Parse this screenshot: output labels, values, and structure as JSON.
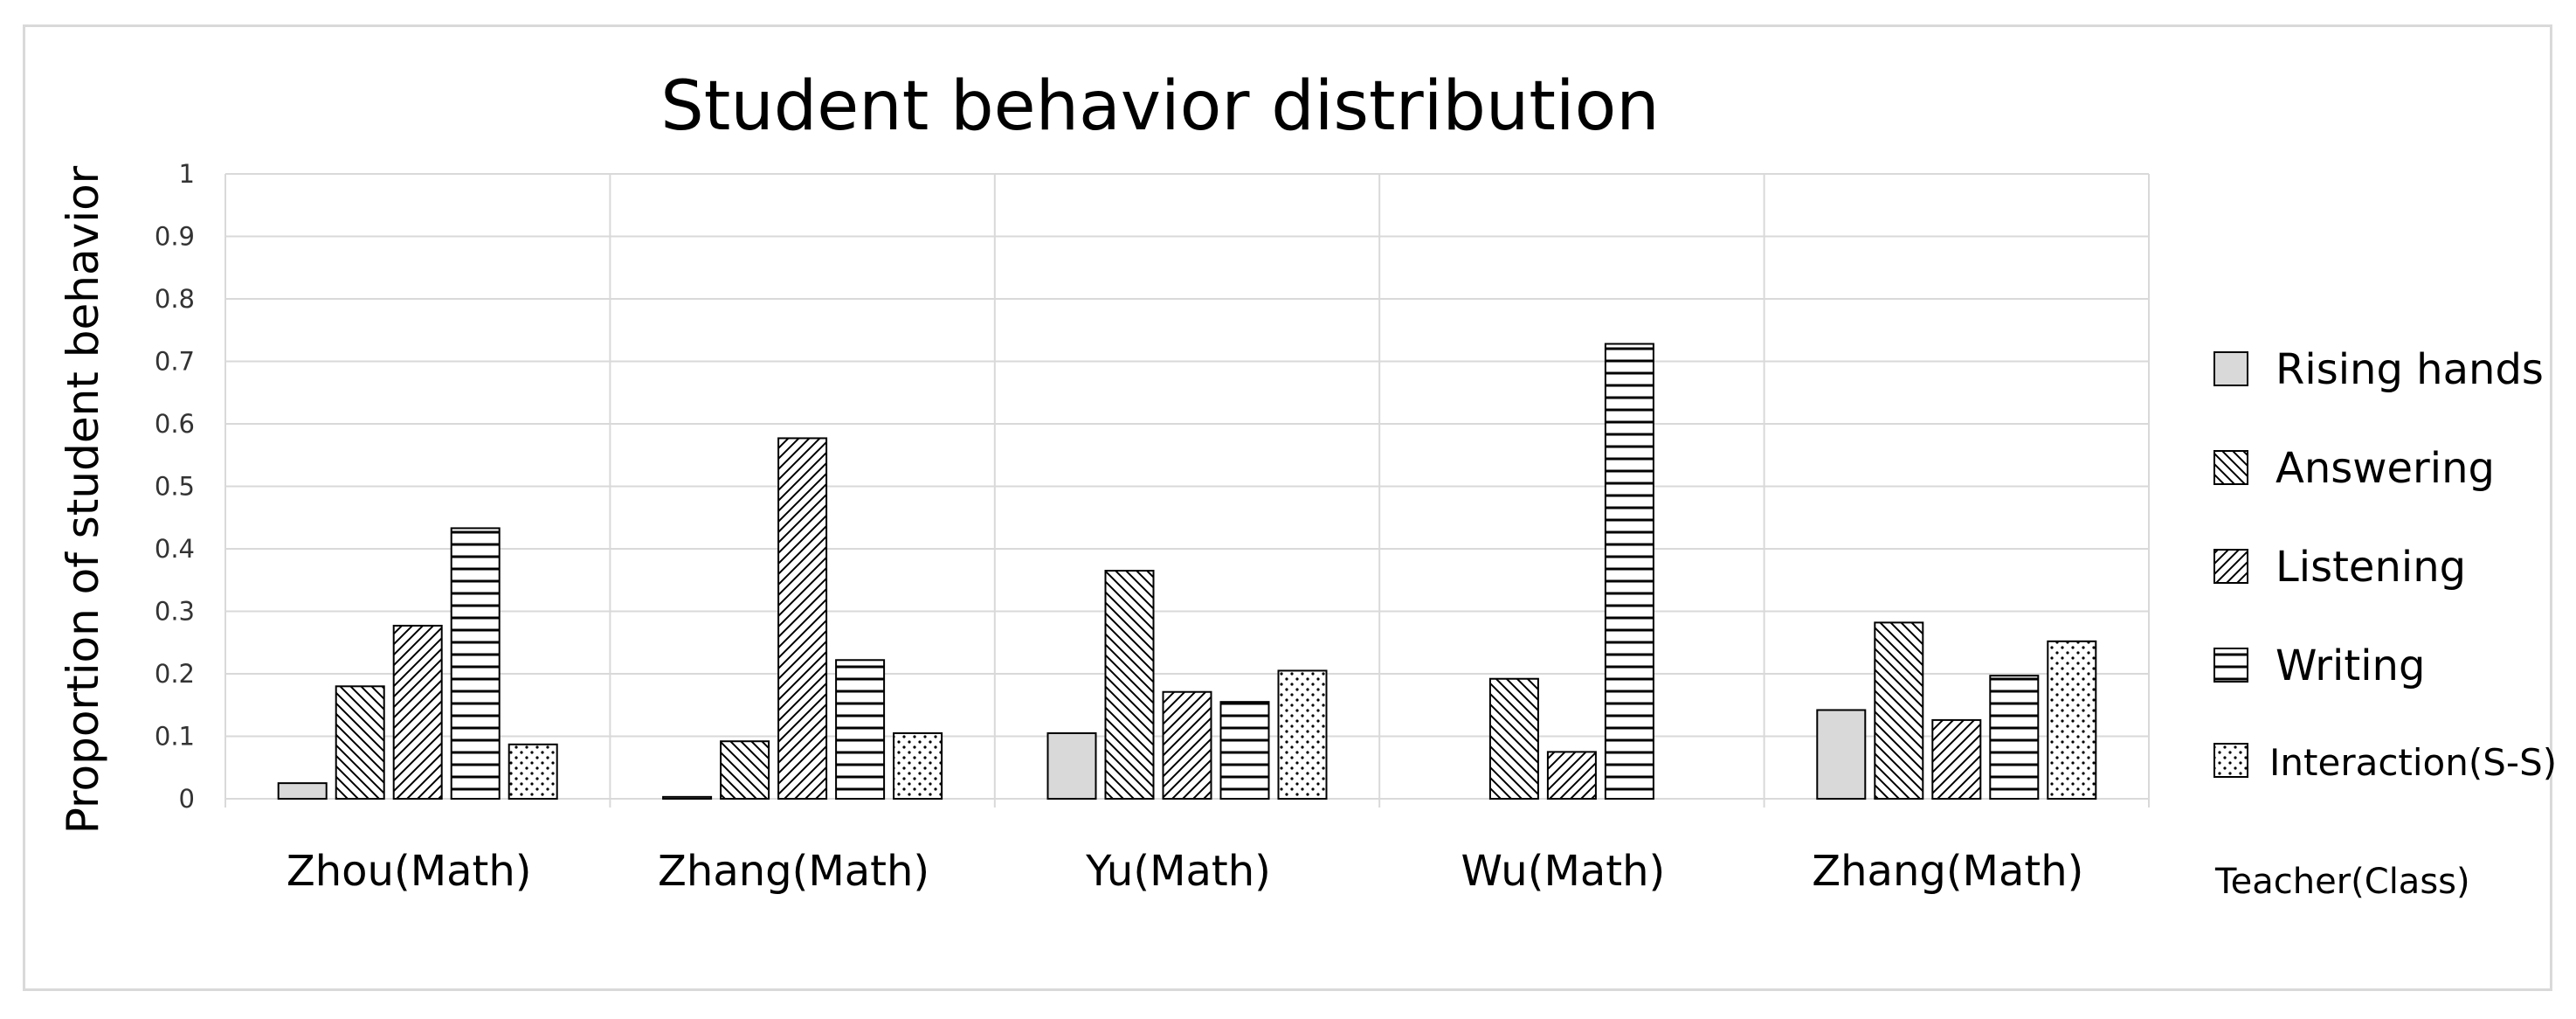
{
  "chart_data": {
    "type": "bar",
    "title": "Student behavior distribution",
    "ylabel": "Proportion of student behavior",
    "xlabel": "Teacher(Class)",
    "ylim": [
      0,
      1
    ],
    "yticks": [
      "0",
      "0.1",
      "0.2",
      "0.3",
      "0.4",
      "0.5",
      "0.6",
      "0.7",
      "0.8",
      "0.9",
      "1"
    ],
    "grid": true,
    "legend_position": "right",
    "categories": [
      "Zhou(Math)",
      "Zhang(Math)",
      "Yu(Math)",
      "Wu(Math)",
      "Zhang(Math)"
    ],
    "series": [
      {
        "name": "Rising hands",
        "pattern": "solid-gray",
        "values": [
          0.025,
          0.003,
          0.105,
          0,
          0.142
        ]
      },
      {
        "name": "Answering",
        "pattern": "back-diagonal-hatch",
        "values": [
          0.18,
          0.092,
          0.365,
          0.192,
          0.282
        ]
      },
      {
        "name": "Listening",
        "pattern": "forward-diagonal-hatch",
        "values": [
          0.277,
          0.577,
          0.171,
          0.075,
          0.126
        ]
      },
      {
        "name": "Writing",
        "pattern": "horizontal-lines",
        "values": [
          0.433,
          0.222,
          0.155,
          0.728,
          0.197
        ]
      },
      {
        "name": "Interaction(S-S)",
        "pattern": "dots",
        "values": [
          0.087,
          0.105,
          0.205,
          0,
          0.252
        ]
      }
    ],
    "colors": {
      "bar_outline": "#000000",
      "rising_fill": "#d9d9d9",
      "grid": "#d9d9d9"
    }
  }
}
